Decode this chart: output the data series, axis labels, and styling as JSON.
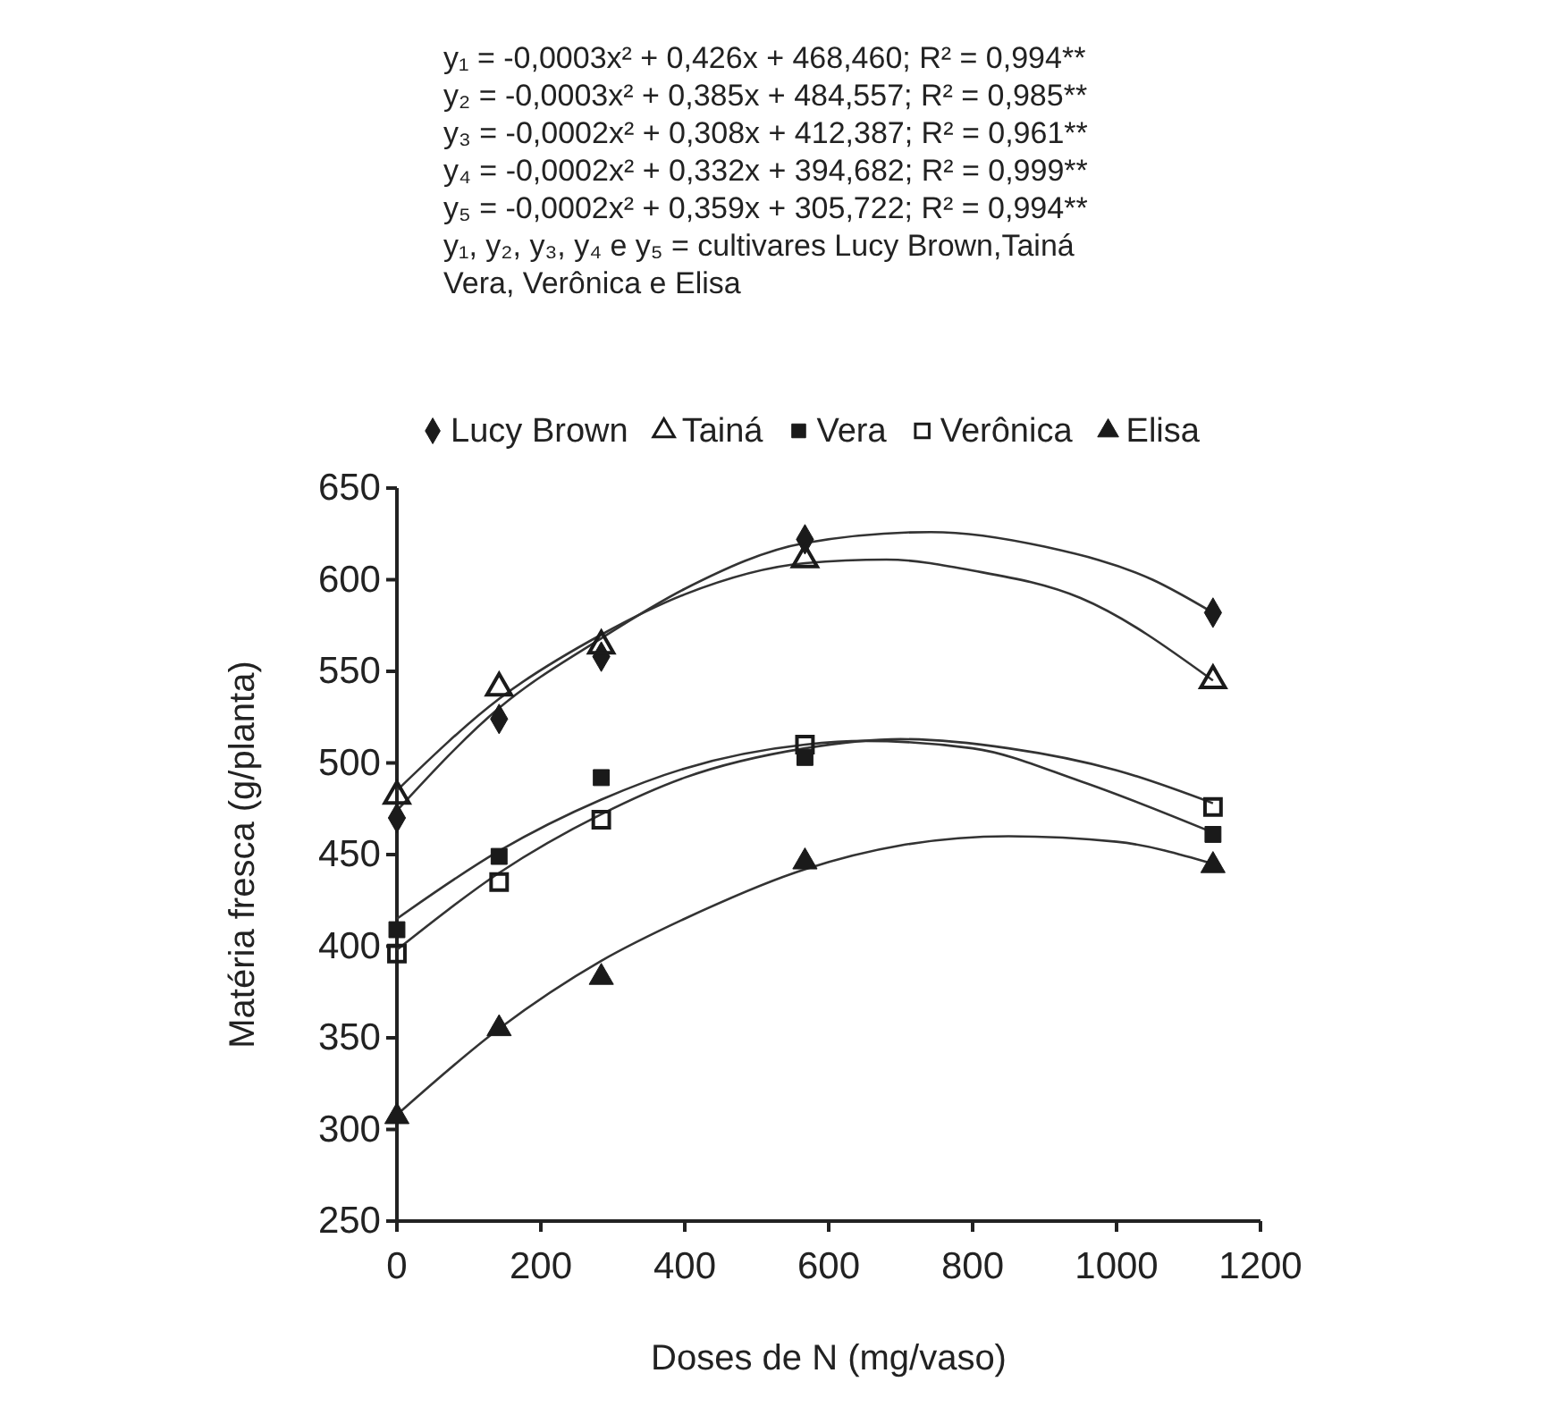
{
  "chart_data": {
    "type": "scatter",
    "xlabel": "Doses de N (mg/vaso)",
    "ylabel": "Matéria fresca (g/planta)",
    "xlim": [
      0,
      1200
    ],
    "xticks": [
      0,
      200,
      400,
      600,
      800,
      1000,
      1200
    ],
    "ylim": [
      250,
      650
    ],
    "yticks": [
      250,
      300,
      350,
      400,
      450,
      500,
      550,
      600,
      650
    ],
    "grid": false,
    "legend": "top",
    "annotations": [
      "y₁ = -0,0003x² + 0,426x + 468,460; R² = 0,994**",
      "y₂ = -0,0003x² + 0,385x + 484,557; R² = 0,985**",
      "y₃ = -0,0002x² + 0,308x + 412,387; R² = 0,961**",
      "y₄ = -0,0002x² + 0,332x + 394,682; R² = 0,999**",
      "y₅ = -0,0002x² + 0,359x + 305,722; R² = 0,994**",
      "y₁, y₂, y₃, y₄ e y₅ = cultivares Lucy Brown,Tainá Vera, Verônica e Elisa"
    ],
    "x": [
      0,
      142,
      284,
      567,
      1134
    ],
    "series": [
      {
        "name": "Lucy Brown",
        "color": "#1a1a1a",
        "marker": "diamond",
        "values": [
          470,
          524,
          558,
          622,
          582
        ]
      },
      {
        "name": "Tainá",
        "color": "#1a1a1a",
        "marker": "triangle-open",
        "values": [
          482,
          541,
          564,
          611,
          545
        ]
      },
      {
        "name": "Vera",
        "color": "#1a1a1a",
        "marker": "square",
        "values": [
          409,
          449,
          492,
          503,
          461
        ]
      },
      {
        "name": "Verônica",
        "color": "#1a1a1a",
        "marker": "square-open",
        "values": [
          396,
          435,
          469,
          510,
          476
        ]
      },
      {
        "name": "Elisa",
        "color": "#1a1a1a",
        "marker": "triangle",
        "values": [
          307,
          355,
          383,
          446,
          444
        ]
      },
      {
        "type": "line",
        "color": "#333333",
        "x": [
          0,
          142,
          284,
          400,
          567,
          742,
          900,
          1050,
          1134
        ],
        "values": [
          474,
          530,
          568,
          595,
          620,
          626,
          618,
          600,
          582
        ]
      },
      {
        "type": "line",
        "color": "#333333",
        "x": [
          0,
          142,
          284,
          400,
          567,
          680,
          800,
          950,
          1134
        ],
        "values": [
          485,
          535,
          570,
          592,
          609,
          611,
          605,
          590,
          545
        ]
      },
      {
        "type": "line",
        "color": "#333333",
        "x": [
          0,
          142,
          284,
          400,
          567,
          650,
          800,
          950,
          1134
        ],
        "values": [
          415,
          452,
          480,
          497,
          510,
          512,
          508,
          490,
          462
        ]
      },
      {
        "type": "line",
        "color": "#333333",
        "x": [
          0,
          142,
          284,
          400,
          567,
          700,
          850,
          1000,
          1134
        ],
        "values": [
          398,
          440,
          472,
          492,
          508,
          513,
          508,
          496,
          478
        ]
      },
      {
        "type": "line",
        "color": "#333333",
        "x": [
          0,
          142,
          284,
          400,
          567,
          700,
          850,
          1000,
          1134
        ],
        "values": [
          308,
          355,
          392,
          415,
          442,
          455,
          460,
          457,
          445
        ]
      }
    ]
  }
}
